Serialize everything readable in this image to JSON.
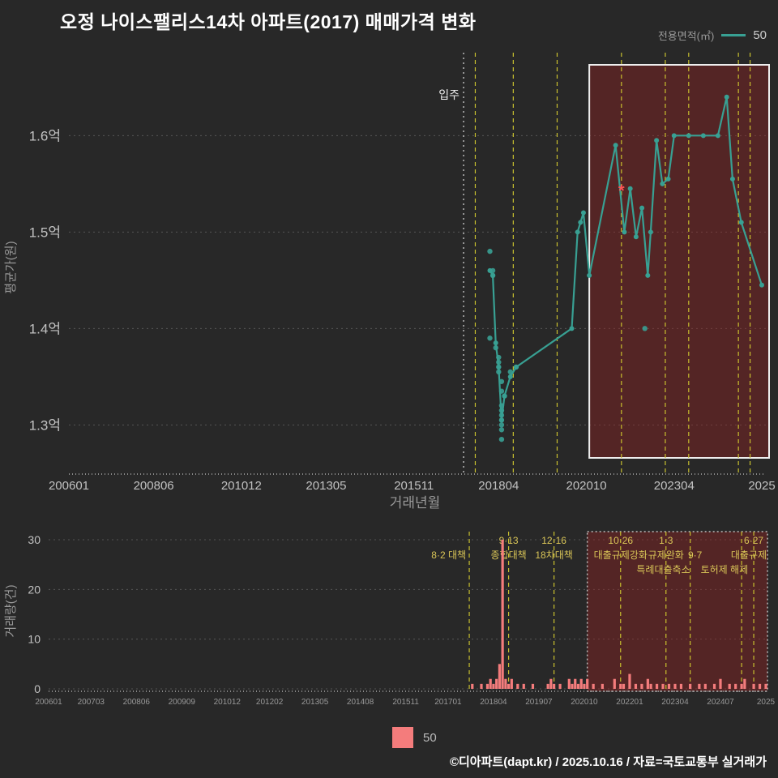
{
  "title": "오정 나이스팰리스14차 아파트(2017) 매매가격 변화",
  "legend_top": {
    "label": "전용면적(㎡)",
    "series": "50"
  },
  "legend_bottom": {
    "series": "50"
  },
  "footer": "©디아파트(dapt.kr) / 2025.10.16 / 자료=국토교통부 실거래가",
  "colors": {
    "background": "#282828",
    "title": "#ffffff",
    "line": "#38a093",
    "bar": "#f47c7c",
    "event_line": "#c9c12f",
    "event_text": "#d9c557",
    "grid": "#555555",
    "axis_text": "#c2c2c2",
    "muted_text": "#999999",
    "region_fill": "rgba(150,32,32,0.40)",
    "region_border_main": "#eeeeee",
    "region_border_vol": "#bbbbbb",
    "move_in_line": "#dddddd",
    "star": "#ff5555"
  },
  "events": [
    {
      "date": "2017-08",
      "labels": [
        {
          "row": 1,
          "text": "8·2 대책",
          "anchor": "end",
          "dx": -4
        }
      ]
    },
    {
      "date": "2018-09",
      "labels": [
        {
          "row": 0,
          "text": "9·13",
          "anchor": "middle",
          "dx": 0
        },
        {
          "row": 1,
          "text": "종합대책",
          "anchor": "middle",
          "dx": 0
        }
      ]
    },
    {
      "date": "2019-12",
      "labels": [
        {
          "row": 0,
          "text": "12·16",
          "anchor": "middle",
          "dx": 0
        },
        {
          "row": 1,
          "text": "18차대책",
          "anchor": "middle",
          "dx": 0
        }
      ]
    },
    {
      "date": "2021-10",
      "labels": [
        {
          "row": 0,
          "text": "10·26",
          "anchor": "middle",
          "dx": 0
        },
        {
          "row": 1,
          "text": "대출규제강화",
          "anchor": "middle",
          "dx": 0
        }
      ]
    },
    {
      "date": "2023-01",
      "labels": [
        {
          "row": 0,
          "text": "1·3",
          "anchor": "middle",
          "dx": 0
        },
        {
          "row": 1,
          "text": "규제완화",
          "anchor": "middle",
          "dx": 0
        }
      ]
    },
    {
      "date": "2023-09",
      "labels": [
        {
          "row": 1,
          "text": "9·7",
          "anchor": "middle",
          "dx": 6
        },
        {
          "row": 2,
          "text": "특례대출축소",
          "anchor": "end",
          "dx": 0
        }
      ]
    },
    {
      "date": "2025-02",
      "labels": [
        {
          "row": 2,
          "text": "토허제 해제",
          "anchor": "end",
          "dx": 8
        }
      ]
    },
    {
      "date": "2025-06",
      "labels": [
        {
          "row": 0,
          "text": "6·27",
          "anchor": "middle",
          "dx": 0
        },
        {
          "row": 1,
          "text": "대출규제",
          "anchor": "end",
          "dx": 16
        }
      ]
    }
  ],
  "chart_data": [
    {
      "type": "line",
      "title": "매매가격 변화",
      "series_name": "50",
      "ylabel": "평균가(원)",
      "xlabel": "거래년월",
      "x_start": "2006-01",
      "x_end": "2025-10",
      "ylim": [
        1.249,
        1.686
      ],
      "y_ticks": [
        {
          "v": 1.3,
          "label": "1.3억"
        },
        {
          "v": 1.4,
          "label": "1.4억"
        },
        {
          "v": 1.5,
          "label": "1.5억"
        },
        {
          "v": 1.6,
          "label": "1.6억"
        }
      ],
      "x_ticks": [
        {
          "label": "200601",
          "m": "2006-01"
        },
        {
          "label": "200806",
          "m": "2008-06"
        },
        {
          "label": "201012",
          "m": "2010-12"
        },
        {
          "label": "201305",
          "m": "2013-05"
        },
        {
          "label": "201511",
          "m": "2015-11"
        },
        {
          "label": "201804",
          "m": "2018-04"
        },
        {
          "label": "202010",
          "m": "2020-10"
        },
        {
          "label": "202304",
          "m": "2023-04"
        },
        {
          "label": "2025",
          "m": "2025-10"
        }
      ],
      "line_points": [
        [
          "2018-01",
          1.46
        ],
        [
          "2018-02",
          1.455
        ],
        [
          "2018-03",
          1.385
        ],
        [
          "2018-04",
          1.36
        ],
        [
          "2018-05",
          1.305
        ],
        [
          "2018-06",
          1.33
        ],
        [
          "2018-08",
          1.35
        ],
        [
          "2018-10",
          1.36
        ],
        [
          "2020-05",
          1.4
        ],
        [
          "2020-07",
          1.5
        ],
        [
          "2020-08",
          1.51
        ],
        [
          "2020-09",
          1.52
        ],
        [
          "2020-11",
          1.455
        ],
        [
          "2021-08",
          1.59
        ],
        [
          "2021-11",
          1.5
        ],
        [
          "2022-01",
          1.545
        ],
        [
          "2022-03",
          1.495
        ],
        [
          "2022-05",
          1.525
        ],
        [
          "2022-07",
          1.455
        ],
        [
          "2022-08",
          1.5
        ],
        [
          "2022-10",
          1.595
        ],
        [
          "2022-12",
          1.55
        ],
        [
          "2023-02",
          1.555
        ],
        [
          "2023-04",
          1.6
        ],
        [
          "2023-09",
          1.6
        ],
        [
          "2024-02",
          1.6
        ],
        [
          "2024-07",
          1.6
        ],
        [
          "2024-10",
          1.64
        ],
        [
          "2024-12",
          1.555
        ],
        [
          "2025-03",
          1.51
        ],
        [
          "2025-10",
          1.445
        ]
      ],
      "scatter_points": [
        [
          "2018-01",
          1.48
        ],
        [
          "2018-01",
          1.39
        ],
        [
          "2018-02",
          1.46
        ],
        [
          "2018-02",
          1.455
        ],
        [
          "2018-03",
          1.38
        ],
        [
          "2018-04",
          1.37
        ],
        [
          "2018-04",
          1.365
        ],
        [
          "2018-04",
          1.36
        ],
        [
          "2018-04",
          1.355
        ],
        [
          "2018-05",
          1.345
        ],
        [
          "2018-05",
          1.335
        ],
        [
          "2018-05",
          1.32
        ],
        [
          "2018-05",
          1.315
        ],
        [
          "2018-05",
          1.31
        ],
        [
          "2018-05",
          1.305
        ],
        [
          "2018-05",
          1.3
        ],
        [
          "2018-05",
          1.295
        ],
        [
          "2018-05",
          1.285
        ],
        [
          "2018-06",
          1.33
        ],
        [
          "2018-08",
          1.355
        ],
        [
          "2018-10",
          1.36
        ],
        [
          "2022-06",
          1.4
        ]
      ],
      "move_in": {
        "date": "2017-04",
        "label": "입주"
      },
      "star_marker": {
        "date": "2021-10",
        "value": 1.545
      },
      "highlight_region": {
        "from": "2020-11",
        "to": "2025-10"
      }
    },
    {
      "type": "bar",
      "series_name": "50",
      "ylabel": "거래량(건)",
      "ylim": [
        0,
        31
      ],
      "y_ticks": [
        {
          "v": 0,
          "label": "0"
        },
        {
          "v": 10,
          "label": "10"
        },
        {
          "v": 20,
          "label": "20"
        },
        {
          "v": 30,
          "label": "30"
        }
      ],
      "x_ticks": [
        {
          "label": "200601",
          "m": "2006-01"
        },
        {
          "label": "200703",
          "m": "2007-03"
        },
        {
          "label": "200806",
          "m": "2008-06"
        },
        {
          "label": "200909",
          "m": "2009-09"
        },
        {
          "label": "201012",
          "m": "2010-12"
        },
        {
          "label": "201202",
          "m": "2012-02"
        },
        {
          "label": "201305",
          "m": "2013-05"
        },
        {
          "label": "201408",
          "m": "2014-08"
        },
        {
          "label": "201511",
          "m": "2015-11"
        },
        {
          "label": "201701",
          "m": "2017-01"
        },
        {
          "label": "201804",
          "m": "2018-04"
        },
        {
          "label": "201907",
          "m": "2019-07"
        },
        {
          "label": "202010",
          "m": "2020-10"
        },
        {
          "label": "202201",
          "m": "2022-01"
        },
        {
          "label": "202304",
          "m": "2023-04"
        },
        {
          "label": "202407",
          "m": "2024-07"
        },
        {
          "label": "2025",
          "m": "2025-10"
        }
      ],
      "bars": [
        [
          "2017-09",
          1
        ],
        [
          "2017-12",
          1
        ],
        [
          "2018-02",
          1
        ],
        [
          "2018-03",
          2
        ],
        [
          "2018-04",
          1
        ],
        [
          "2018-05",
          2
        ],
        [
          "2018-06",
          5
        ],
        [
          "2018-07",
          30
        ],
        [
          "2018-08",
          2
        ],
        [
          "2018-09",
          1
        ],
        [
          "2018-10",
          2
        ],
        [
          "2018-12",
          1
        ],
        [
          "2019-02",
          1
        ],
        [
          "2019-05",
          1
        ],
        [
          "2019-10",
          1
        ],
        [
          "2019-11",
          2
        ],
        [
          "2019-12",
          1
        ],
        [
          "2020-02",
          1
        ],
        [
          "2020-05",
          2
        ],
        [
          "2020-06",
          1
        ],
        [
          "2020-07",
          2
        ],
        [
          "2020-08",
          1
        ],
        [
          "2020-09",
          2
        ],
        [
          "2020-10",
          1
        ],
        [
          "2020-11",
          2
        ],
        [
          "2021-01",
          1
        ],
        [
          "2021-04",
          1
        ],
        [
          "2021-08",
          2
        ],
        [
          "2021-10",
          1
        ],
        [
          "2021-11",
          1
        ],
        [
          "2022-01",
          3
        ],
        [
          "2022-03",
          1
        ],
        [
          "2022-05",
          1
        ],
        [
          "2022-07",
          2
        ],
        [
          "2022-08",
          1
        ],
        [
          "2022-10",
          1
        ],
        [
          "2022-12",
          1
        ],
        [
          "2023-02",
          1
        ],
        [
          "2023-04",
          1
        ],
        [
          "2023-06",
          1
        ],
        [
          "2023-09",
          1
        ],
        [
          "2023-12",
          1
        ],
        [
          "2024-02",
          1
        ],
        [
          "2024-05",
          1
        ],
        [
          "2024-07",
          2
        ],
        [
          "2024-10",
          1
        ],
        [
          "2024-12",
          1
        ],
        [
          "2025-02",
          1
        ],
        [
          "2025-03",
          2
        ],
        [
          "2025-06",
          1
        ],
        [
          "2025-08",
          1
        ],
        [
          "2025-10",
          1
        ]
      ],
      "highlight_region": {
        "from": "2020-11",
        "to": "2025-10"
      }
    }
  ]
}
